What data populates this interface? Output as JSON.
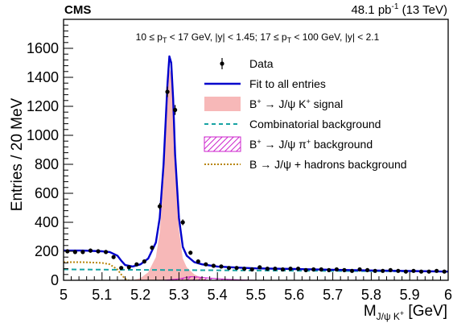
{
  "header": {
    "experiment": "CMS",
    "lumi_prefix": "48.1 pb",
    "lumi_exp": "-1",
    "lumi_suffix": " (13 TeV)"
  },
  "selection": {
    "text": "10 ≤ p_T < 17 GeV, |y| < 1.45; 17 ≤ p_T < 100 GeV, |y| < 2.1"
  },
  "legend": {
    "data": "Data",
    "fit": "Fit to all entries",
    "signal": "B⁺ → J/ψ K⁺ signal",
    "comb": "Combinatorial background",
    "pi": "B⁺ → J/ψ π⁺ background",
    "hadrons": "B → J/ψ + hadrons background"
  },
  "colors": {
    "fit": "#0000cc",
    "signal_fill": "#f7b8b8",
    "comb": "#17a3a3",
    "pi": "#cc22cc",
    "hadrons": "#b8860b",
    "data": "#000000"
  },
  "chart_data": {
    "type": "scatter",
    "xlabel": "M_J/ψ K⁺ [GeV]",
    "ylabel": "Entries / 20 MeV",
    "xlim": [
      5.0,
      6.0
    ],
    "ylim": [
      0,
      1800
    ],
    "x_ticks": [
      "5",
      "5.1",
      "5.2",
      "5.3",
      "5.4",
      "5.5",
      "5.6",
      "5.7",
      "5.8",
      "5.9",
      "6"
    ],
    "y_ticks": [
      "0",
      "200",
      "400",
      "600",
      "800",
      "1000",
      "1200",
      "1400",
      "1600"
    ],
    "data_points": {
      "x": [
        5.01,
        5.03,
        5.05,
        5.07,
        5.09,
        5.11,
        5.13,
        5.15,
        5.17,
        5.19,
        5.21,
        5.23,
        5.25,
        5.27,
        5.29,
        5.31,
        5.33,
        5.35,
        5.37,
        5.39,
        5.41,
        5.43,
        5.45,
        5.47,
        5.49,
        5.51,
        5.53,
        5.55,
        5.57,
        5.59,
        5.61,
        5.63,
        5.65,
        5.67,
        5.69,
        5.71,
        5.73,
        5.75,
        5.77,
        5.79,
        5.81,
        5.83,
        5.85,
        5.87,
        5.89,
        5.91,
        5.93,
        5.95,
        5.97,
        5.99
      ],
      "y": [
        200,
        195,
        195,
        205,
        200,
        195,
        160,
        85,
        90,
        110,
        130,
        225,
        510,
        1300,
        1175,
        400,
        190,
        130,
        110,
        100,
        95,
        85,
        85,
        80,
        75,
        90,
        80,
        80,
        75,
        80,
        80,
        70,
        75,
        75,
        70,
        75,
        70,
        65,
        75,
        70,
        65,
        65,
        70,
        65,
        60,
        65,
        60,
        60,
        65,
        60
      ]
    },
    "fit": {
      "x": [
        5.0,
        5.05,
        5.1,
        5.12,
        5.14,
        5.15,
        5.16,
        5.18,
        5.2,
        5.22,
        5.24,
        5.25,
        5.26,
        5.27,
        5.275,
        5.28,
        5.285,
        5.29,
        5.3,
        5.31,
        5.32,
        5.34,
        5.36,
        5.4,
        5.45,
        5.5,
        5.6,
        5.7,
        5.8,
        5.9,
        6.0
      ],
      "y": [
        205,
        205,
        200,
        195,
        170,
        135,
        105,
        95,
        110,
        150,
        260,
        430,
        800,
        1350,
        1545,
        1500,
        1250,
        870,
        430,
        230,
        170,
        125,
        110,
        95,
        88,
        82,
        78,
        73,
        68,
        64,
        60
      ]
    },
    "signal": {
      "x": [
        5.18,
        5.2,
        5.22,
        5.24,
        5.25,
        5.26,
        5.27,
        5.275,
        5.28,
        5.285,
        5.29,
        5.3,
        5.31,
        5.32,
        5.34,
        5.36,
        5.38
      ],
      "y": [
        0,
        15,
        55,
        160,
        330,
        700,
        1250,
        1460,
        1420,
        1170,
        790,
        350,
        150,
        90,
        40,
        15,
        0
      ]
    },
    "combinatorial": {
      "x": [
        5.0,
        6.0
      ],
      "y": [
        75,
        60
      ]
    },
    "pi_background": {
      "x": [
        5.26,
        5.3,
        5.33,
        5.35,
        5.38,
        5.42,
        5.46,
        5.5
      ],
      "y": [
        0,
        10,
        25,
        22,
        15,
        8,
        3,
        0
      ]
    },
    "hadrons_background": {
      "x": [
        5.0,
        5.05,
        5.1,
        5.12,
        5.14,
        5.15,
        5.16,
        5.17
      ],
      "y": [
        125,
        125,
        120,
        110,
        75,
        40,
        10,
        0
      ]
    }
  }
}
